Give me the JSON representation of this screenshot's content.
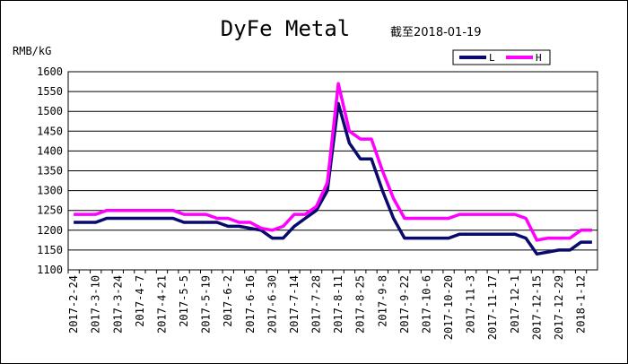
{
  "chart_data": {
    "type": "line",
    "title": "DyFe Metal",
    "subtitle": "截至2018-01-19",
    "ylabel": "RMB/kG",
    "xlabel": "",
    "ylim": [
      1100,
      1600
    ],
    "yticks": [
      1100,
      1150,
      1200,
      1250,
      1300,
      1350,
      1400,
      1450,
      1500,
      1550,
      1600
    ],
    "grid": true,
    "legend_position": "top-right",
    "x": [
      "2017-2-24",
      "2017-3-3",
      "2017-3-10",
      "2017-3-17",
      "2017-3-24",
      "2017-3-31",
      "2017-4-7",
      "2017-4-14",
      "2017-4-21",
      "2017-4-28",
      "2017-5-5",
      "2017-5-12",
      "2017-5-19",
      "2017-5-26",
      "2017-6-2",
      "2017-6-9",
      "2017-6-16",
      "2017-6-23",
      "2017-6-30",
      "2017-7-7",
      "2017-7-14",
      "2017-7-21",
      "2017-7-28",
      "2017-8-4",
      "2017-8-11",
      "2017-8-18",
      "2017-8-25",
      "2017-9-1",
      "2017-9-8",
      "2017-9-15",
      "2017-9-22",
      "2017-9-29",
      "2017-10-6",
      "2017-10-13",
      "2017-10-20",
      "2017-10-27",
      "2017-11-3",
      "2017-11-10",
      "2017-11-17",
      "2017-11-24",
      "2017-12-1",
      "2017-12-8",
      "2017-12-15",
      "2017-12-22",
      "2017-12-29",
      "2018-1-5",
      "2018-1-12",
      "2018-1-19"
    ],
    "xtick_labels": [
      "2017-2-24",
      "2017-3-10",
      "2017-3-24",
      "2017-4-7",
      "2017-4-21",
      "2017-5-5",
      "2017-5-19",
      "2017-6-2",
      "2017-6-16",
      "2017-6-30",
      "2017-7-14",
      "2017-7-28",
      "2017-8-11",
      "2017-8-25",
      "2017-9-8",
      "2017-9-22",
      "2017-10-6",
      "2017-10-20",
      "2017-11-3",
      "2017-11-17",
      "2017-12-1",
      "2017-12-15",
      "2017-12-29",
      "2018-1-12"
    ],
    "series": [
      {
        "name": "L",
        "color": "#0a0a6e",
        "values": [
          1220,
          1220,
          1220,
          1230,
          1230,
          1230,
          1230,
          1230,
          1230,
          1230,
          1220,
          1220,
          1220,
          1220,
          1210,
          1210,
          1205,
          1200,
          1180,
          1180,
          1210,
          1230,
          1250,
          1300,
          1520,
          1420,
          1380,
          1380,
          1300,
          1230,
          1180,
          1180,
          1180,
          1180,
          1180,
          1190,
          1190,
          1190,
          1190,
          1190,
          1190,
          1180,
          1140,
          1145,
          1150,
          1150,
          1170,
          1170
        ]
      },
      {
        "name": "H",
        "color": "#ff00ff",
        "values": [
          1240,
          1240,
          1240,
          1250,
          1250,
          1250,
          1250,
          1250,
          1250,
          1250,
          1240,
          1240,
          1240,
          1230,
          1230,
          1220,
          1220,
          1205,
          1200,
          1210,
          1240,
          1240,
          1260,
          1320,
          1570,
          1450,
          1430,
          1430,
          1350,
          1280,
          1230,
          1230,
          1230,
          1230,
          1230,
          1240,
          1240,
          1240,
          1240,
          1240,
          1240,
          1230,
          1175,
          1180,
          1180,
          1180,
          1200,
          1200
        ]
      }
    ]
  }
}
